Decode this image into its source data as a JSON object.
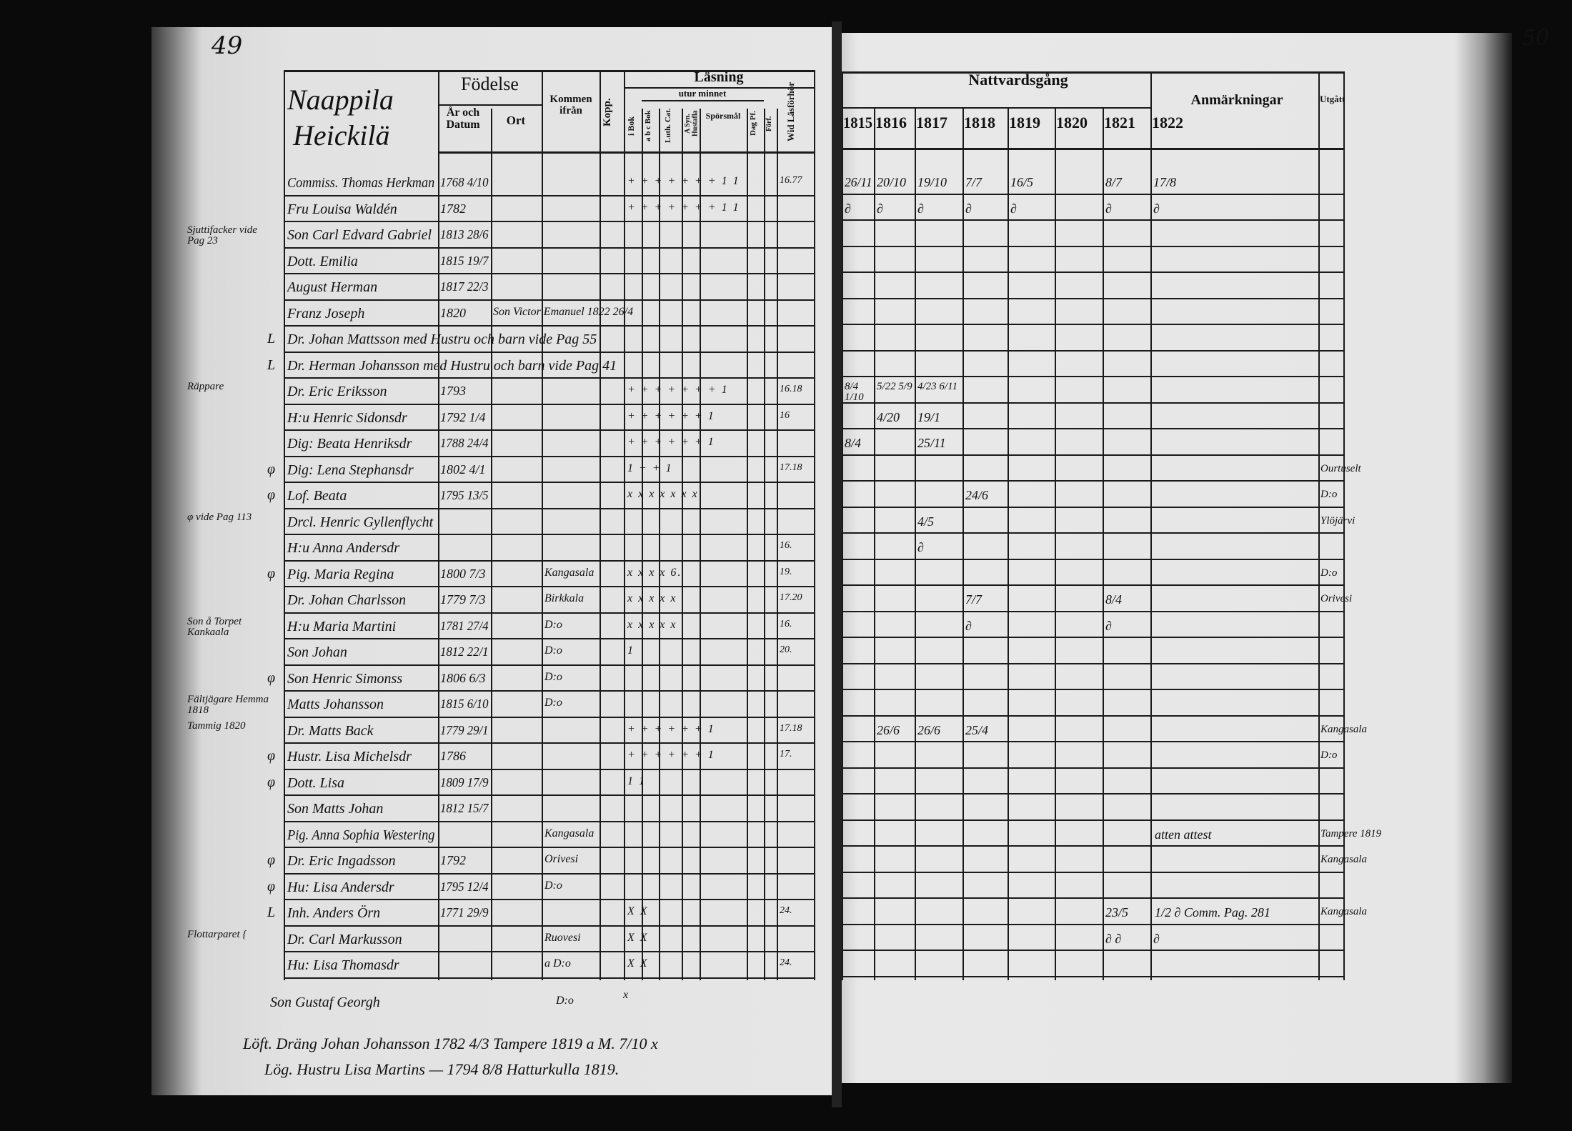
{
  "page_numbers": {
    "left": "49",
    "right": "50"
  },
  "left_page": {
    "village_title": [
      "Naappila",
      "Heickilä"
    ],
    "headers": {
      "fodelse": "Födelse",
      "ar_och_datum": "År och Datum",
      "ort": "Ort",
      "kommen_ifran": "Kommen ifrån",
      "kopp": "Kopp.",
      "lasning": "Läsning",
      "utur_minnet": "utur minnet",
      "i_bok": "i Bok",
      "abc_bok": "a b c Bok",
      "luth_cat": "Luth. Cat.",
      "a_syn_hustafla": "A Syn. Hustafla",
      "sporsmal": "Spörsmål",
      "dag_pf": "Dag Pf.",
      "forf": "Förf.",
      "last_col": "Wid Läsförhör"
    },
    "rows": [
      {
        "name": "Commiss. Thomas Herkman",
        "born": "1768 4/10",
        "reading": "+ + + + + + + 1 1",
        "extra": "16.77"
      },
      {
        "name": "Fru Louisa Waldén",
        "born": "1782",
        "reading": "+ + + + + + + 1 1",
        "extra": ""
      },
      {
        "name": "Son Carl Edvard Gabriel",
        "born": "1813 28/6",
        "reading": "",
        "extra": ""
      },
      {
        "name": "Dott. Emilia",
        "born": "1815 19/7",
        "reading": "",
        "extra": ""
      },
      {
        "name": "August Herman",
        "born": "1817 22/3",
        "reading": "",
        "extra": ""
      },
      {
        "name": "Franz Joseph",
        "born": "1820",
        "from": "Son Victor Emanuel 1822 26/4",
        "reading": "",
        "extra": ""
      },
      {
        "name": "Dr. Johan Mattsson med Hustru och barn vide Pag 55",
        "born": "",
        "reading": "",
        "extra": ""
      },
      {
        "name": "Dr. Herman Johansson med Hustru och barn vide Pag 41",
        "born": "",
        "reading": "",
        "extra": ""
      },
      {
        "name": "Dr. Eric Eriksson",
        "born": "1793",
        "reading": "+ + + + + + + 1",
        "extra": "16.18"
      },
      {
        "name": "H:u Henric Sidonsdr",
        "born": "1792 1/4",
        "reading": "+ + + + + + 1",
        "extra": "16"
      },
      {
        "name": "Dig: Beata Henriksdr",
        "born": "1788 24/4",
        "reading": "+ + + + + + 1",
        "extra": ""
      },
      {
        "name": "Dig: Lena Stephansdr",
        "born": "1802 4/1",
        "reading": "1 + + 1",
        "extra": "17.18"
      },
      {
        "name": "Lof. Beata",
        "born": "1795 13/5",
        "reading": "x x x x x x x",
        "extra": ""
      },
      {
        "name": "Drcl. Henric Gyllenflycht",
        "born": "",
        "reading": "",
        "extra": ""
      },
      {
        "name": "H:u Anna Andersdr",
        "born": "",
        "reading": "",
        "extra": "16."
      },
      {
        "name": "Pig. Maria Regina",
        "born": "1800 7/3",
        "from": "Kangasala",
        "reading": "x x x x 6.",
        "extra": "19."
      },
      {
        "name": "Dr. Johan Charlsson",
        "born": "1779 7/3",
        "from": "Birkkala",
        "reading": "x x x x x",
        "extra": "17.20"
      },
      {
        "name": "H:u Maria Martini",
        "born": "1781 27/4",
        "from": "D:o",
        "reading": "x x x x x",
        "extra": "16."
      },
      {
        "name": "Son Johan",
        "born": "1812 22/1",
        "from": "D:o",
        "reading": "1",
        "extra": "20."
      },
      {
        "name": "Son Henric Simonss",
        "born": "1806 6/3",
        "from": "D:o",
        "reading": "",
        "extra": ""
      },
      {
        "name": "Matts Johansson",
        "born": "1815 6/10",
        "from": "D:o",
        "reading": "",
        "extra": ""
      },
      {
        "name": "Dr. Matts Back",
        "born": "1779 29/1",
        "reading": "+ + + + + + 1",
        "extra": "17.18"
      },
      {
        "name": "Hustr. Lisa Michelsdr",
        "born": "1786",
        "reading": "+ + + + + + 1",
        "extra": "17."
      },
      {
        "name": "Dott. Lisa",
        "born": "1809 17/9",
        "reading": "1 1",
        "extra": ""
      },
      {
        "name": "Son Matts Johan",
        "born": "1812 15/7",
        "reading": "",
        "extra": ""
      },
      {
        "name": "Pig. Anna Sophia Westering",
        "born": "",
        "from": "Kangasala",
        "reading": "",
        "extra": ""
      },
      {
        "name": "Dr. Eric Ingadsson",
        "born": "1792",
        "from": "Orivesi",
        "reading": "",
        "extra": ""
      },
      {
        "name": "Hu: Lisa Andersdr",
        "born": "1795 12/4",
        "from": "D:o",
        "reading": "",
        "extra": ""
      },
      {
        "name": "Inh. Anders Örn",
        "born": "1771 29/9",
        "reading": "X X",
        "extra": "24."
      },
      {
        "name": "Dr. Carl Markusson",
        "born": "",
        "from": "Ruovesi",
        "reading": "X X",
        "extra": ""
      },
      {
        "name": "Hu: Lisa Thomasdr",
        "born": "",
        "from": "a D:o",
        "reading": "X X",
        "extra": "24."
      }
    ],
    "below_table": {
      "name": "Son Gustaf Georgh",
      "from": "D:o",
      "mark": "x"
    },
    "margin_notes": [
      {
        "text": "Sjuttifacker vide Pag 23",
        "row": 2
      },
      {
        "text": "L",
        "row": 6
      },
      {
        "text": "L",
        "row": 7
      },
      {
        "text": "Räppare",
        "row": 8
      },
      {
        "text": "φ",
        "row": 11
      },
      {
        "text": "φ",
        "row": 12
      },
      {
        "text": "φ vide Pag 113",
        "row": 13
      },
      {
        "text": "φ",
        "row": 15
      },
      {
        "text": "Son å Torpet Kankaala",
        "row": 17
      },
      {
        "text": "φ",
        "row": 19
      },
      {
        "text": "Fältjägare Hemma 1818",
        "row": 20
      },
      {
        "text": "Tammig 1820",
        "row": 21
      },
      {
        "text": "φ",
        "row": 22
      },
      {
        "text": "φ",
        "row": 23
      },
      {
        "text": "φ",
        "row": 26
      },
      {
        "text": "φ",
        "row": 27
      },
      {
        "text": "L",
        "row": 28
      },
      {
        "text": "Flottarparet {",
        "row": 29
      }
    ],
    "footer_notes": [
      "Löft. Dräng Johan Johansson 1782 4/3 Tampere 1819 a M. 7/10 x",
      "Lög. Hustru Lisa Martins — 1794 8/8 Hatturkulla 1819."
    ]
  },
  "right_page": {
    "headers": {
      "nattvardsgang": "Nattvardsgång",
      "years": [
        "1815",
        "1816",
        "1817",
        "1818",
        "1819",
        "1820",
        "1821",
        "1822"
      ],
      "anmarkningar": "Anmärkningar",
      "utgatt": "Utgått"
    },
    "communion": [
      {
        "row": 0,
        "values": [
          "26/11",
          "20/10",
          "19/10",
          "7/7",
          "16/5",
          "",
          "8/7",
          "17/8"
        ]
      },
      {
        "row": 1,
        "values": [
          "∂",
          "∂",
          "∂",
          "∂",
          "∂",
          "",
          "∂",
          "∂"
        ]
      },
      {
        "row": 8,
        "values": [
          "8/4 1/10",
          "5/22 5/9",
          "4/23 6/11",
          "",
          "",
          "",
          "",
          ""
        ]
      },
      {
        "row": 9,
        "values": [
          "",
          "4/20",
          "19/1",
          "",
          "",
          "",
          "",
          ""
        ]
      },
      {
        "row": 10,
        "values": [
          "8/4",
          "",
          "25/11",
          "",
          "",
          "",
          "",
          ""
        ]
      },
      {
        "row": 12,
        "values": [
          "",
          "",
          "",
          "24/6",
          "",
          "",
          "",
          ""
        ]
      },
      {
        "row": 13,
        "values": [
          "",
          "",
          "4/5",
          "",
          "",
          "",
          "",
          ""
        ]
      },
      {
        "row": 14,
        "values": [
          "",
          "",
          "∂",
          "",
          "",
          "",
          "",
          ""
        ]
      },
      {
        "row": 16,
        "values": [
          "",
          "",
          "",
          "7/7",
          "",
          "",
          "8/4",
          ""
        ]
      },
      {
        "row": 17,
        "values": [
          "",
          "",
          "",
          "∂",
          "",
          "",
          "∂",
          ""
        ]
      },
      {
        "row": 21,
        "values": [
          "",
          "26/6",
          "26/6",
          "25/4",
          "",
          "",
          "",
          ""
        ]
      },
      {
        "row": 28,
        "values": [
          "",
          "",
          "",
          "",
          "",
          "",
          "23/5",
          ""
        ]
      },
      {
        "row": 29,
        "values": [
          "",
          "",
          "",
          "",
          "",
          "",
          "∂ ∂",
          "∂"
        ]
      }
    ],
    "remarks": [
      {
        "row": 25,
        "text": "atten attest"
      },
      {
        "row": 28,
        "text": "1/2 ∂ Comm. Pag. 281"
      }
    ],
    "utgatt": [
      {
        "row": 11,
        "text": "Ourtuselt"
      },
      {
        "row": 12,
        "text": "D:o"
      },
      {
        "row": 13,
        "text": "Ylöjärvi"
      },
      {
        "row": 15,
        "text": "D:o"
      },
      {
        "row": 16,
        "text": "Orivesi"
      },
      {
        "row": 21,
        "text": "Kangasala"
      },
      {
        "row": 22,
        "text": "D:o"
      },
      {
        "row": 25,
        "text": "Tampere 1819"
      },
      {
        "row": 26,
        "text": "Kangasala"
      },
      {
        "row": 28,
        "text": "Kangasala"
      }
    ]
  },
  "colors": {
    "paper": "#e4e4e4",
    "ink": "#111111",
    "background": "#0a0a0a"
  }
}
